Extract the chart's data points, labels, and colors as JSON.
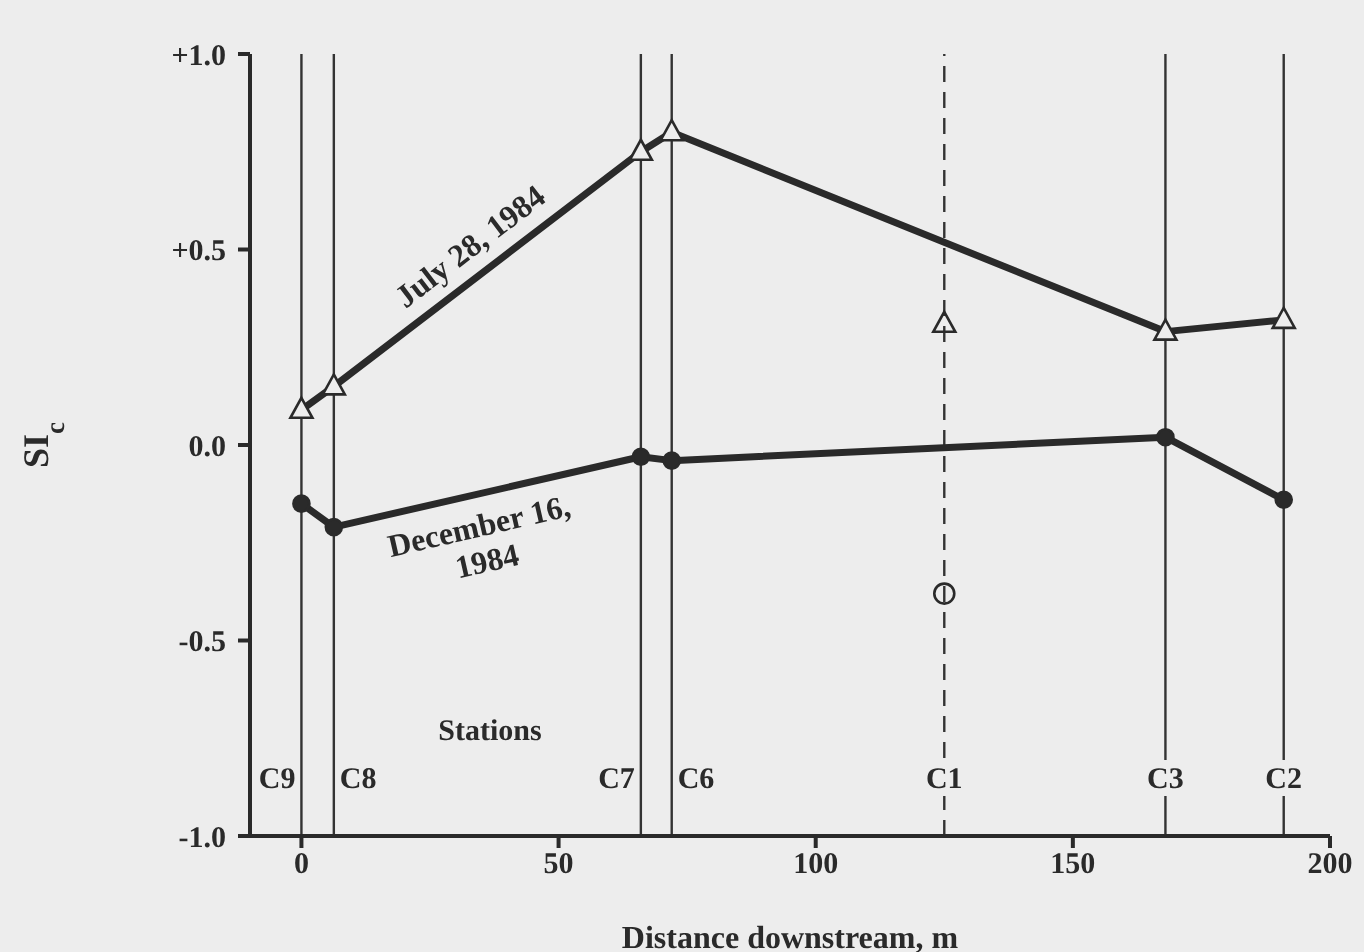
{
  "chart_data": {
    "type": "line",
    "xlabel": "Distance downstream, m",
    "ylabel": "SI$_{c}$",
    "xlim": [
      -10,
      200
    ],
    "xticks": [
      0,
      50,
      100,
      150,
      200
    ],
    "ylim": [
      -1,
      1
    ],
    "yticks": [
      {
        "value": -1,
        "label": "-1.0"
      },
      {
        "value": -0.5,
        "label": "-0.5"
      },
      {
        "value": 0,
        "label": "0.0"
      },
      {
        "value": 0.5,
        "label": "+0.5"
      },
      {
        "value": 1,
        "label": "+1.0"
      }
    ],
    "grid": false,
    "legend": false,
    "series": [
      {
        "name": "July 28, 1984",
        "color": "#2a2a2a",
        "marker": "triangle",
        "x": [
          0,
          6.3,
          66,
          72,
          168,
          191
        ],
        "values": [
          0.09,
          0.15,
          0.75,
          0.8,
          0.29,
          0.32
        ]
      },
      {
        "name": "December 16, 1984",
        "color": "#2a2a2a",
        "marker": "circle",
        "x": [
          0,
          6.3,
          66,
          72,
          168,
          191
        ],
        "values": [
          -0.15,
          -0.21,
          -0.03,
          -0.04,
          0.02,
          -0.14
        ]
      },
      {
        "type": "scatter",
        "color": "#2a2a2a",
        "marker": "triangle",
        "x": [
          125
        ],
        "values": [
          0.31
        ]
      },
      {
        "type": "scatter",
        "color": "#2a2a2a",
        "marker": "circle",
        "x": [
          125
        ],
        "values": [
          -0.38
        ]
      }
    ],
    "ref_lines": [
      {
        "axis": "x",
        "value": 0,
        "label": "C9",
        "color": "#333333",
        "line_style": "solid"
      },
      {
        "axis": "x",
        "value": 6.3,
        "label": "C8",
        "color": "#333333",
        "line_style": "solid"
      },
      {
        "axis": "x",
        "value": 66,
        "label": "C7",
        "color": "#333333",
        "line_style": "solid"
      },
      {
        "axis": "x",
        "value": 72,
        "label": "C6",
        "color": "#333333",
        "line_style": "solid"
      },
      {
        "axis": "x",
        "value": 125,
        "label": "C1",
        "color": "#333333",
        "line_style": "dashed"
      },
      {
        "axis": "x",
        "value": 168,
        "label": "C3",
        "color": "#333333",
        "line_style": "solid"
      },
      {
        "axis": "x",
        "value": 191,
        "label": "C2",
        "color": "#333333",
        "line_style": "solid"
      }
    ],
    "annotations": [
      "Stations"
    ]
  }
}
